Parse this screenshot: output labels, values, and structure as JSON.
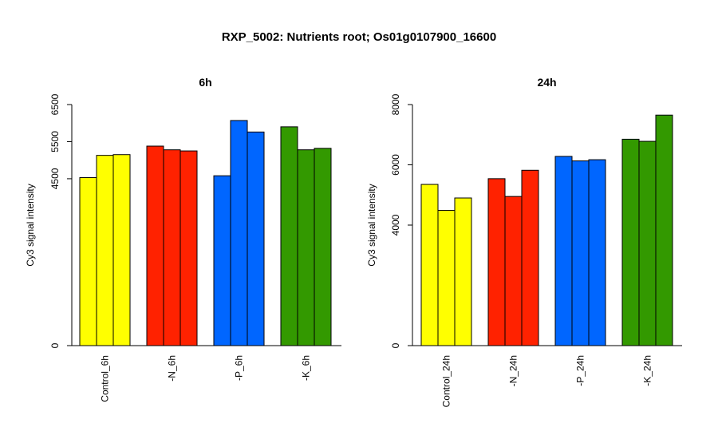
{
  "title": "RXP_5002: Nutrients root; Os01g0107900_16600",
  "chart_data": [
    {
      "type": "bar",
      "title": "6h",
      "ylabel": "Cy3 signal intensity",
      "ylim": [
        0,
        6500
      ],
      "yticks": [
        0,
        4500,
        5500,
        6500
      ],
      "categories": [
        "Control_6h",
        "-N_6h",
        "-P_6h",
        "-K_6h"
      ],
      "colors": [
        "#ffff00",
        "#ff2200",
        "#0066ff",
        "#339900"
      ],
      "groups": [
        [
          4530,
          5130,
          5150
        ],
        [
          5380,
          5280,
          5250
        ],
        [
          4580,
          6070,
          5760
        ],
        [
          5900,
          5280,
          5320
        ]
      ]
    },
    {
      "type": "bar",
      "title": "24h",
      "ylabel": "Cy3 signal intensity",
      "ylim": [
        0,
        8000
      ],
      "yticks": [
        0,
        4000,
        6000,
        8000
      ],
      "categories": [
        "Control_24h",
        "-N_24h",
        "-P_24h",
        "-K_24h"
      ],
      "colors": [
        "#ffff00",
        "#ff2200",
        "#0066ff",
        "#339900"
      ],
      "groups": [
        [
          5350,
          4490,
          4900
        ],
        [
          5540,
          4950,
          5820
        ],
        [
          6280,
          6130,
          6170
        ],
        [
          6850,
          6780,
          7650
        ]
      ]
    }
  ]
}
